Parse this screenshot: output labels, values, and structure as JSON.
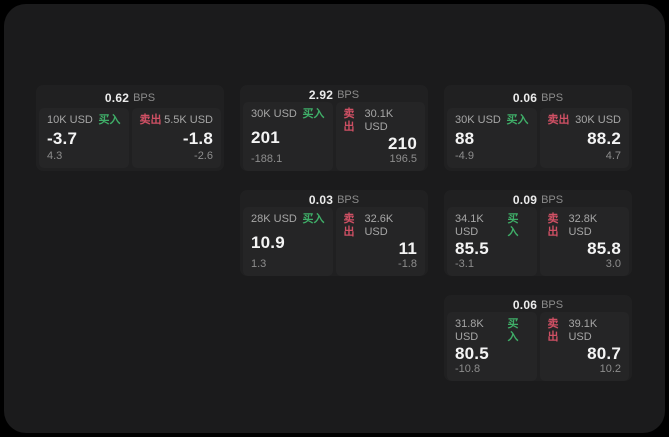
{
  "labels": {
    "bps_unit": "BPS",
    "buy": "买入",
    "sell": "卖出"
  },
  "colors": {
    "background": "#000000",
    "panel": "#1b1b1c",
    "card": "#202021",
    "tile": "#252526",
    "buy_accent": "#3fae68",
    "sell_accent": "#cf5064"
  },
  "cards": [
    {
      "bps": "0.62",
      "buy": {
        "amount": "10K USD",
        "price": "-3.7",
        "change": "4.3"
      },
      "sell": {
        "amount": "5.5K USD",
        "price": "-1.8",
        "change": "-2.6"
      }
    },
    {
      "bps": "2.92",
      "buy": {
        "amount": "30K USD",
        "price": "201",
        "change": "-188.1"
      },
      "sell": {
        "amount": "30.1K USD",
        "price": "210",
        "change": "196.5"
      }
    },
    {
      "bps": "0.06",
      "buy": {
        "amount": "30K USD",
        "price": "88",
        "change": "-4.9"
      },
      "sell": {
        "amount": "30K USD",
        "price": "88.2",
        "change": "4.7"
      }
    },
    {
      "bps": "0.03",
      "buy": {
        "amount": "28K USD",
        "price": "10.9",
        "change": "1.3"
      },
      "sell": {
        "amount": "32.6K USD",
        "price": "11",
        "change": "-1.8"
      }
    },
    {
      "bps": "0.09",
      "buy": {
        "amount": "34.1K USD",
        "price": "85.5",
        "change": "-3.1"
      },
      "sell": {
        "amount": "32.8K USD",
        "price": "85.8",
        "change": "3.0"
      }
    },
    {
      "bps": "0.06",
      "buy": {
        "amount": "31.8K USD",
        "price": "80.5",
        "change": "-10.8"
      },
      "sell": {
        "amount": "39.1K USD",
        "price": "80.7",
        "change": "10.2"
      }
    }
  ]
}
